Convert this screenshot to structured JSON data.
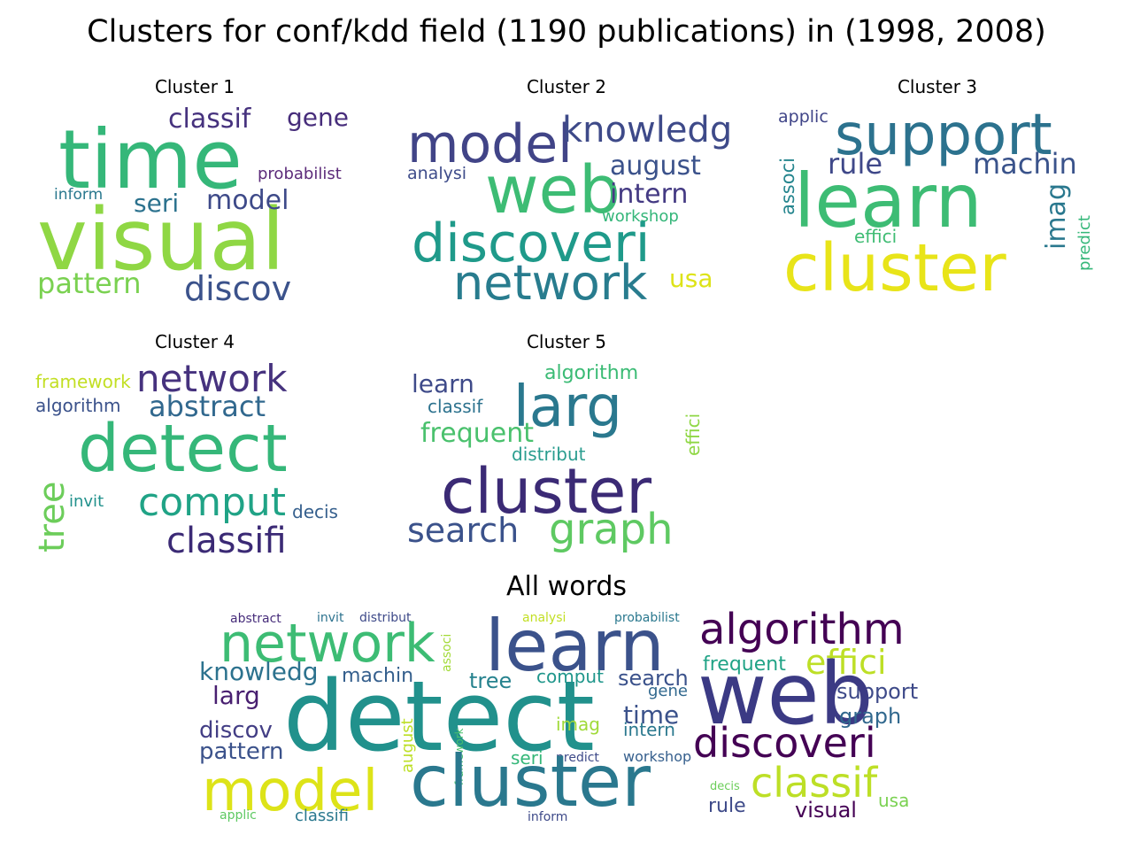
{
  "title": "Clusters for conf/kdd field (1190 publications) in (1998, 2008)",
  "panels": [
    {
      "title": "Cluster 1",
      "words": [
        {
          "text": "time",
          "color": "#35b779",
          "weight": 1.0
        },
        {
          "text": "visual",
          "color": "#8fd744",
          "weight": 1.0
        },
        {
          "text": "classif",
          "color": "#46327e",
          "weight": 0.42
        },
        {
          "text": "gene",
          "color": "#472d7b",
          "weight": 0.38
        },
        {
          "text": "probabilist",
          "color": "#5c2b7a",
          "weight": 0.25
        },
        {
          "text": "inform",
          "color": "#2a788e",
          "weight": 0.23
        },
        {
          "text": "seri",
          "color": "#2c728e",
          "weight": 0.38
        },
        {
          "text": "model",
          "color": "#3e4a89",
          "weight": 0.4
        },
        {
          "text": "pattern",
          "color": "#7ad151",
          "weight": 0.42
        },
        {
          "text": "discov",
          "color": "#3b528b",
          "weight": 0.46
        }
      ]
    },
    {
      "title": "Cluster 2",
      "words": [
        {
          "text": "model",
          "color": "#414487",
          "weight": 0.62
        },
        {
          "text": "knowledg",
          "color": "#3e4a89",
          "weight": 0.47
        },
        {
          "text": "web",
          "color": "#3dbc74",
          "weight": 0.86
        },
        {
          "text": "august",
          "color": "#3b528b",
          "weight": 0.37
        },
        {
          "text": "analysi",
          "color": "#3e4c8a",
          "weight": 0.24
        },
        {
          "text": "intern",
          "color": "#443a83",
          "weight": 0.37
        },
        {
          "text": "workshop",
          "color": "#34b679",
          "weight": 0.25
        },
        {
          "text": "discoveri",
          "color": "#1f9a8a",
          "weight": 0.65
        },
        {
          "text": "network",
          "color": "#287c8e",
          "weight": 0.6
        },
        {
          "text": "usa",
          "color": "#dde318",
          "weight": 0.35
        }
      ]
    },
    {
      "title": "Cluster 3",
      "words": [
        {
          "text": "applic",
          "color": "#404588",
          "weight": 0.25
        },
        {
          "text": "support",
          "color": "#2c728e",
          "weight": 0.7
        },
        {
          "text": "rule",
          "color": "#3f4889",
          "weight": 0.4
        },
        {
          "text": "machin",
          "color": "#3a538b",
          "weight": 0.42
        },
        {
          "text": "learn",
          "color": "#3dbc74",
          "weight": 0.9
        },
        {
          "text": "associ",
          "color": "#25858e",
          "weight": 0.3
        },
        {
          "text": "imag",
          "color": "#2a788e",
          "weight": 0.4
        },
        {
          "text": "effici",
          "color": "#3fbc73",
          "weight": 0.27
        },
        {
          "text": "predict",
          "color": "#35b779",
          "weight": 0.26
        },
        {
          "text": "cluster",
          "color": "#e8e419",
          "weight": 0.9
        }
      ]
    },
    {
      "title": "Cluster 4",
      "words": [
        {
          "text": "framework",
          "color": "#c2df23",
          "weight": 0.27
        },
        {
          "text": "network",
          "color": "#46327e",
          "weight": 0.55
        },
        {
          "text": "algorithm",
          "color": "#3b528b",
          "weight": 0.27
        },
        {
          "text": "abstract",
          "color": "#31688e",
          "weight": 0.45
        },
        {
          "text": "detect",
          "color": "#35b779",
          "weight": 1.0
        },
        {
          "text": "tree",
          "color": "#6ccd5a",
          "weight": 0.55
        },
        {
          "text": "invit",
          "color": "#21918c",
          "weight": 0.25
        },
        {
          "text": "comput",
          "color": "#20a386",
          "weight": 0.6
        },
        {
          "text": "decis",
          "color": "#355f8d",
          "weight": 0.3
        },
        {
          "text": "classifi",
          "color": "#3b2a75",
          "weight": 0.55
        }
      ]
    },
    {
      "title": "Cluster 5",
      "words": [
        {
          "text": "algorithm",
          "color": "#3bbb75",
          "weight": 0.3
        },
        {
          "text": "learn",
          "color": "#3e4a89",
          "weight": 0.37
        },
        {
          "text": "larg",
          "color": "#2a788e",
          "weight": 0.9
        },
        {
          "text": "classif",
          "color": "#2c728e",
          "weight": 0.27
        },
        {
          "text": "effici",
          "color": "#8fd744",
          "weight": 0.25
        },
        {
          "text": "frequent",
          "color": "#4ac16d",
          "weight": 0.4
        },
        {
          "text": "distribut",
          "color": "#2a9d8f",
          "weight": 0.28
        },
        {
          "text": "cluster",
          "color": "#3b2a75",
          "weight": 1.0
        },
        {
          "text": "search",
          "color": "#3b528b",
          "weight": 0.55
        },
        {
          "text": "graph",
          "color": "#5ec962",
          "weight": 0.68
        }
      ]
    },
    {
      "title": "All words",
      "words": [
        {
          "text": "abstract",
          "color": "#472d7b",
          "weight": 0.2
        },
        {
          "text": "invit",
          "color": "#2c728e",
          "weight": 0.2
        },
        {
          "text": "distribut",
          "color": "#3e4a89",
          "weight": 0.2
        },
        {
          "text": "analysi",
          "color": "#c2df23",
          "weight": 0.18
        },
        {
          "text": "probabilist",
          "color": "#2a788e",
          "weight": 0.18
        },
        {
          "text": "network",
          "color": "#3dbc74",
          "weight": 0.8
        },
        {
          "text": "learn",
          "color": "#3b528b",
          "weight": 1.0
        },
        {
          "text": "algorithm",
          "color": "#440154",
          "weight": 0.6
        },
        {
          "text": "frequent",
          "color": "#20a386",
          "weight": 0.3
        },
        {
          "text": "effici",
          "color": "#bddf26",
          "weight": 0.5
        },
        {
          "text": "knowledg",
          "color": "#2c728e",
          "weight": 0.4
        },
        {
          "text": "associ",
          "color": "#a2da37",
          "weight": 0.18
        },
        {
          "text": "machin",
          "color": "#355f8d",
          "weight": 0.3
        },
        {
          "text": "tree",
          "color": "#26828e",
          "weight": 0.3
        },
        {
          "text": "comput",
          "color": "#1f968b",
          "weight": 0.27
        },
        {
          "text": "search",
          "color": "#3b528b",
          "weight": 0.35
        },
        {
          "text": "gene",
          "color": "#31688e",
          "weight": 0.24
        },
        {
          "text": "support",
          "color": "#3e4a89",
          "weight": 0.35
        },
        {
          "text": "larg",
          "color": "#481f70",
          "weight": 0.38
        },
        {
          "text": "detect",
          "color": "#21918c",
          "weight": 1.4
        },
        {
          "text": "web",
          "color": "#3b3a84",
          "weight": 1.05
        },
        {
          "text": "time",
          "color": "#3b528b",
          "weight": 0.35
        },
        {
          "text": "graph",
          "color": "#31688e",
          "weight": 0.35
        },
        {
          "text": "discov",
          "color": "#433e85",
          "weight": 0.36
        },
        {
          "text": "imag",
          "color": "#a0da39",
          "weight": 0.3
        },
        {
          "text": "intern",
          "color": "#2a788e",
          "weight": 0.28
        },
        {
          "text": "august",
          "color": "#bddf26",
          "weight": 0.25
        },
        {
          "text": "framework",
          "color": "#4ac16d",
          "weight": 0.14
        },
        {
          "text": "pattern",
          "color": "#3b528b",
          "weight": 0.36
        },
        {
          "text": "discoveri",
          "color": "#440154",
          "weight": 0.68
        },
        {
          "text": "seri",
          "color": "#35b779",
          "weight": 0.27
        },
        {
          "text": "predict",
          "color": "#3e4a89",
          "weight": 0.18
        },
        {
          "text": "workshop",
          "color": "#355f8d",
          "weight": 0.2
        },
        {
          "text": "model",
          "color": "#dde318",
          "weight": 0.95
        },
        {
          "text": "cluster",
          "color": "#2a788e",
          "weight": 1.2
        },
        {
          "text": "decis",
          "color": "#6ccd5a",
          "weight": 0.16
        },
        {
          "text": "classif",
          "color": "#bddf26",
          "weight": 0.62
        },
        {
          "text": "rule",
          "color": "#3e4a89",
          "weight": 0.3
        },
        {
          "text": "usa",
          "color": "#7ad151",
          "weight": 0.25
        },
        {
          "text": "visual",
          "color": "#440154",
          "weight": 0.38
        },
        {
          "text": "applic",
          "color": "#5ec962",
          "weight": 0.18
        },
        {
          "text": "classifi",
          "color": "#2a788e",
          "weight": 0.24
        },
        {
          "text": "inform",
          "color": "#3e4a89",
          "weight": 0.18
        }
      ]
    }
  ]
}
